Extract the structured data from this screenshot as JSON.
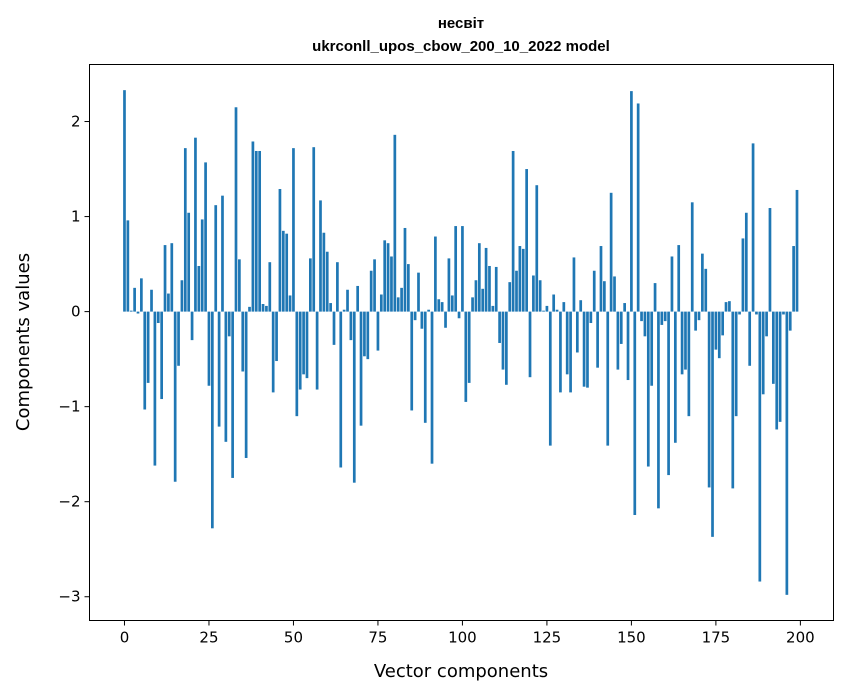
{
  "chart_data": {
    "type": "bar",
    "title_line1": "несвіт",
    "title_line2": "ukrconll_upos_cbow_200_10_2022 model",
    "xlabel": "Vector components",
    "ylabel": "Components values",
    "xlim": [
      -10.35,
      209.8
    ],
    "ylim": [
      -3.25,
      2.6
    ],
    "xticks": [
      0,
      25,
      50,
      75,
      100,
      125,
      150,
      175,
      200
    ],
    "xtick_labels": [
      "0",
      "25",
      "50",
      "75",
      "100",
      "125",
      "150",
      "175",
      "200"
    ],
    "yticks": [
      -3,
      -2,
      -1,
      0,
      1,
      2
    ],
    "ytick_labels": [
      "−3",
      "−2",
      "−1",
      "0",
      "1",
      "2"
    ],
    "grid": false,
    "color": "#1f77b4",
    "values": [
      2.33,
      0.96,
      0.01,
      0.25,
      -0.02,
      0.35,
      -1.03,
      -0.75,
      0.23,
      -1.62,
      -0.12,
      -0.92,
      0.7,
      0.19,
      0.72,
      -1.79,
      -0.57,
      0.33,
      1.72,
      1.04,
      -0.3,
      1.83,
      0.48,
      0.97,
      1.57,
      -0.78,
      -2.28,
      1.12,
      -1.21,
      1.22,
      -1.37,
      -0.26,
      -1.75,
      2.15,
      0.55,
      -0.63,
      -1.54,
      0.05,
      1.79,
      1.69,
      1.69,
      0.08,
      0.06,
      0.52,
      -0.85,
      -0.52,
      1.29,
      0.85,
      0.82,
      0.17,
      1.72,
      -1.1,
      -0.82,
      -0.66,
      -0.7,
      0.56,
      1.73,
      -0.82,
      1.17,
      0.83,
      0.63,
      0.09,
      -0.35,
      0.52,
      -1.64,
      0.02,
      0.23,
      -0.3,
      -1.8,
      0.27,
      -1.2,
      -0.47,
      -0.5,
      0.43,
      0.55,
      -0.41,
      0.18,
      0.75,
      0.72,
      0.58,
      1.86,
      0.15,
      0.25,
      0.88,
      0.5,
      -1.04,
      -0.09,
      0.41,
      -0.18,
      -1.17,
      0.02,
      -1.6,
      0.79,
      0.13,
      0.1,
      -0.17,
      0.56,
      0.17,
      0.9,
      -0.07,
      0.9,
      -0.95,
      -0.75,
      0.15,
      0.33,
      0.72,
      0.24,
      0.67,
      0.48,
      0.06,
      0.47,
      -0.33,
      -0.61,
      -0.77,
      0.31,
      1.69,
      0.43,
      0.69,
      0.66,
      1.5,
      -0.69,
      0.38,
      1.33,
      0.33,
      0.01,
      0.06,
      -1.41,
      0.18,
      0.02,
      -0.85,
      0.1,
      -0.66,
      -0.85,
      0.57,
      -0.43,
      0.12,
      -0.79,
      -0.8,
      -0.12,
      0.43,
      -0.59,
      0.69,
      0.32,
      -1.41,
      1.25,
      0.37,
      -0.61,
      -0.34,
      0.09,
      -0.72,
      2.32,
      -2.14,
      2.19,
      -0.1,
      -0.26,
      -1.63,
      -0.78,
      0.3,
      -2.07,
      -0.14,
      -0.1,
      -1.72,
      0.58,
      -1.38,
      0.7,
      -0.66,
      -0.61,
      -1.1,
      1.15,
      -0.2,
      -0.09,
      0.61,
      0.45,
      -1.85,
      -2.37,
      -0.4,
      -0.49,
      -0.25,
      0.1,
      0.11,
      -1.86,
      -1.1,
      -0.03,
      0.77,
      1.04,
      -0.57,
      1.77,
      -0.03,
      -2.84,
      -0.87,
      -0.26,
      1.09,
      -0.76,
      -1.24,
      -1.16,
      -0.03,
      -2.98,
      -0.2,
      0.69,
      1.28
    ]
  }
}
